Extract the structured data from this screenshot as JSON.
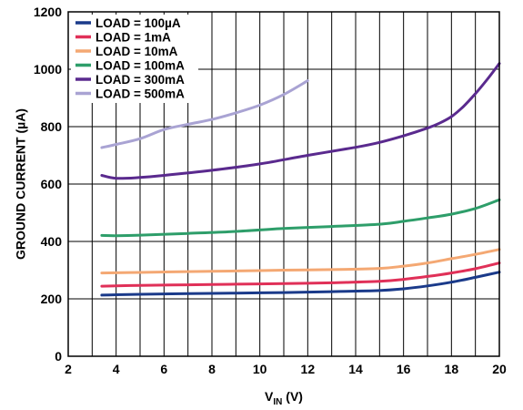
{
  "chart_data": {
    "type": "line",
    "title": "",
    "xlabel_main": "V",
    "xlabel_sub": "IN",
    "xlabel_unit": " (V)",
    "ylabel": "GROUND CURRENT (µA)",
    "xlim": [
      2,
      20
    ],
    "ylim": [
      0,
      1200
    ],
    "x_ticks": [
      "2",
      "4",
      "6",
      "8",
      "10",
      "12",
      "14",
      "16",
      "18",
      "20"
    ],
    "y_ticks": [
      "0",
      "200",
      "400",
      "600",
      "800",
      "1000",
      "1200"
    ],
    "grid": true,
    "legend_placement": "top-left",
    "series": [
      {
        "name": "LOAD = 100µA",
        "color": "#1a3a8a",
        "points": [
          [
            3.4,
            213
          ],
          [
            5,
            216
          ],
          [
            7,
            218
          ],
          [
            9,
            220
          ],
          [
            11,
            222
          ],
          [
            13,
            225
          ],
          [
            15,
            229
          ],
          [
            16,
            235
          ],
          [
            17,
            245
          ],
          [
            18,
            258
          ],
          [
            19,
            275
          ],
          [
            20,
            293
          ]
        ]
      },
      {
        "name": "LOAD = 1mA",
        "color": "#e03058",
        "points": [
          [
            3.4,
            244
          ],
          [
            5,
            247
          ],
          [
            7,
            249
          ],
          [
            9,
            251
          ],
          [
            11,
            253
          ],
          [
            13,
            256
          ],
          [
            15,
            261
          ],
          [
            16,
            268
          ],
          [
            17,
            278
          ],
          [
            18,
            290
          ],
          [
            19,
            305
          ],
          [
            20,
            325
          ]
        ]
      },
      {
        "name": "LOAD = 10mA",
        "color": "#f4a873",
        "points": [
          [
            3.4,
            290
          ],
          [
            5,
            292
          ],
          [
            7,
            295
          ],
          [
            9,
            297
          ],
          [
            11,
            300
          ],
          [
            13,
            302
          ],
          [
            15,
            306
          ],
          [
            16,
            314
          ],
          [
            17,
            325
          ],
          [
            18,
            340
          ],
          [
            19,
            355
          ],
          [
            20,
            372
          ]
        ]
      },
      {
        "name": "LOAD = 100mA",
        "color": "#2e9e6a",
        "points": [
          [
            3.4,
            421
          ],
          [
            4,
            420
          ],
          [
            5,
            422
          ],
          [
            7,
            428
          ],
          [
            9,
            435
          ],
          [
            11,
            445
          ],
          [
            13,
            452
          ],
          [
            15,
            460
          ],
          [
            16,
            470
          ],
          [
            17,
            482
          ],
          [
            18,
            495
          ],
          [
            19,
            515
          ],
          [
            20,
            545
          ]
        ]
      },
      {
        "name": "LOAD = 300mA",
        "color": "#5a2a8e",
        "points": [
          [
            3.4,
            630
          ],
          [
            4,
            620
          ],
          [
            5,
            623
          ],
          [
            6,
            630
          ],
          [
            8,
            648
          ],
          [
            10,
            670
          ],
          [
            12,
            700
          ],
          [
            14,
            728
          ],
          [
            15,
            745
          ],
          [
            16,
            768
          ],
          [
            17,
            795
          ],
          [
            17.5,
            812
          ],
          [
            18,
            835
          ],
          [
            18.5,
            870
          ],
          [
            19,
            915
          ],
          [
            19.5,
            965
          ],
          [
            20,
            1020
          ]
        ]
      },
      {
        "name": "LOAD = 500mA",
        "color": "#a9a3d3",
        "points": [
          [
            3.4,
            727
          ],
          [
            4,
            738
          ],
          [
            5,
            758
          ],
          [
            6,
            790
          ],
          [
            7,
            808
          ],
          [
            8,
            825
          ],
          [
            9,
            848
          ],
          [
            10,
            875
          ],
          [
            11,
            912
          ],
          [
            12,
            960
          ]
        ]
      }
    ]
  }
}
